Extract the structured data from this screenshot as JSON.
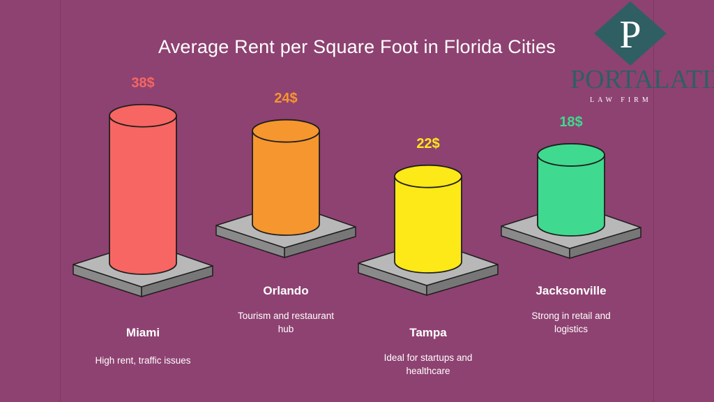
{
  "chart_data": {
    "type": "bar",
    "title": "Average Rent per Square Foot in Florida Cities",
    "categories": [
      "Miami",
      "Orlando",
      "Tampa",
      "Jacksonville"
    ],
    "values": [
      38,
      24,
      22,
      18
    ],
    "value_labels": [
      "38$",
      "24$",
      "22$",
      "18$"
    ],
    "descriptions": [
      [
        "High rent, traffic issues"
      ],
      [
        "Tourism and restaurant",
        "hub"
      ],
      [
        "Ideal for startups and",
        "healthcare"
      ],
      [
        "Strong in retail and",
        "logistics"
      ]
    ],
    "colors": [
      "#f76662",
      "#f5962e",
      "#fde818",
      "#3fd98f"
    ],
    "label_colors": [
      "#f76662",
      "#f5962e",
      "#fde818",
      "#3fd98f"
    ]
  },
  "logo": {
    "mark_letter": "P",
    "name": "PORTALATIN",
    "subtitle": "LAW FIRM",
    "color": "#2f5f62"
  }
}
